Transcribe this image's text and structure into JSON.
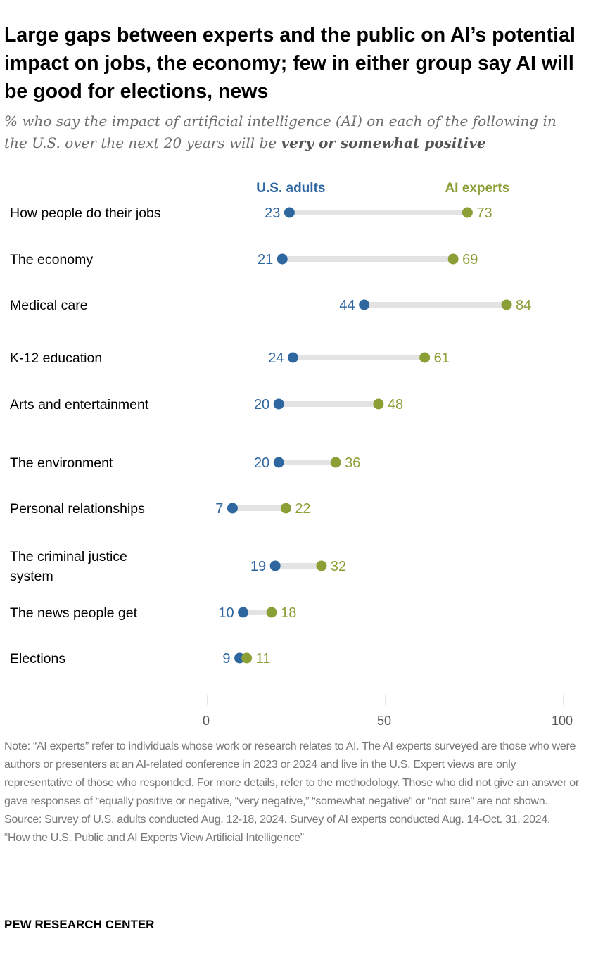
{
  "title": "Large gaps between experts and the public on AI’s potential impact on jobs, the economy; few in either group say AI will be good for elections, news",
  "subtitle_pre": "% who say the impact of artificial intelligence (AI) on each of the following in the U.S. over the next 20 years will be ",
  "subtitle_bold": "very or somewhat positive",
  "colors": {
    "us_adults": "#2e67a0",
    "ai_experts": "#8b9f37",
    "connector": "#e3e3e3"
  },
  "chart_data": {
    "type": "dot",
    "xlim": [
      0,
      100
    ],
    "xticks": [
      "0",
      "50",
      "100"
    ],
    "grid": false,
    "legend": "top, labels above columns",
    "categories": [
      "How people do their jobs",
      "The economy",
      "Medical care",
      "K-12 education",
      "Arts and entertainment",
      "The environment",
      "Personal relationships",
      "The criminal justice system",
      "The news people get",
      "Elections"
    ],
    "series": [
      {
        "name": "U.S. adults",
        "values": [
          23,
          21,
          44,
          24,
          20,
          20,
          7,
          19,
          10,
          9
        ]
      },
      {
        "name": "AI experts",
        "values": [
          73,
          69,
          84,
          61,
          48,
          36,
          22,
          32,
          18,
          11
        ]
      }
    ]
  },
  "notes": {
    "note": "Note: “AI experts” refer to individuals whose work or research relates to AI. The AI experts surveyed are those who were authors or presenters at an AI-related conference in 2023 or 2024 and live in the U.S. Expert views are only representative of those who responded. For more details, refer to the methodology. Those who did not give an answer or gave responses of “equally positive or negative, “very negative,” “somewhat negative” or “not sure” are not shown.",
    "source": "Source: Survey of U.S. adults conducted Aug. 12-18, 2024. Survey of AI experts conducted Aug. 14-Oct. 31, 2024.",
    "report": "“How the U.S. Public and AI Experts View Artificial Intelligence”"
  },
  "brand": "PEW RESEARCH CENTER"
}
